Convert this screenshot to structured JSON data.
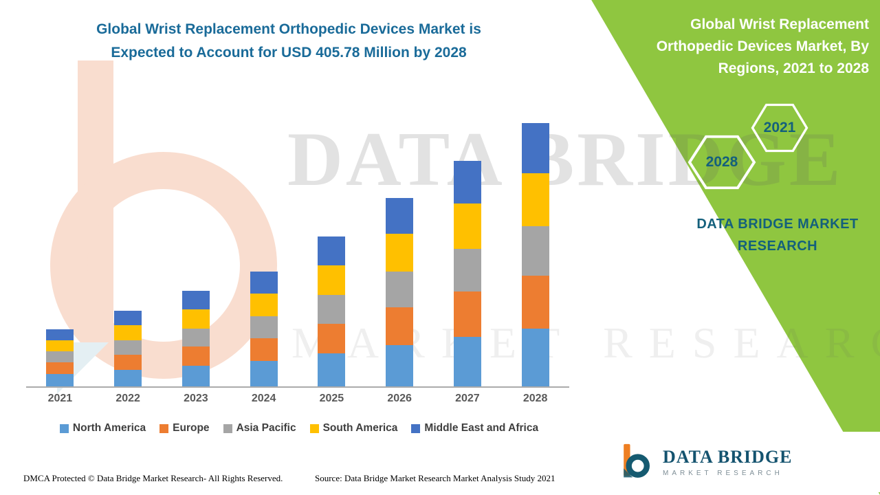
{
  "title": {
    "line1": "Global Wrist Replacement Orthopedic Devices Market is",
    "line2": "Expected to Account for USD 405.78 Million by 2028"
  },
  "side_panel": {
    "heading_lines": [
      "Global Wrist Replacement",
      "Orthopedic Devices Market, By",
      "Regions, 2021 to 2028"
    ],
    "hexagons": [
      "2028",
      "2021"
    ],
    "brand_line1": "DATA BRIDGE MARKET",
    "brand_line2": "RESEARCH"
  },
  "watermark": {
    "line1": "DATA BRIDGE",
    "line2": "MARKET RESEARCH"
  },
  "logo": {
    "title": "DATA BRIDGE",
    "subtitle": "MARKET RESEARCH"
  },
  "footer": {
    "dmca": "DMCA Protected © Data Bridge Market Research- All Rights Reserved.",
    "source": "Source: Data Bridge Market Research Market Analysis Study 2021"
  },
  "colors": {
    "green": "#8FC640",
    "title_teal": "#1A6B99",
    "teal_dark": "#14607C",
    "axis_label": "#595959",
    "legend_text": "#3F3F3F"
  },
  "chart_data": {
    "type": "bar",
    "stacked": true,
    "title": "Global Wrist Replacement Orthopedic Devices Market, By Regions, 2021 to 2028",
    "unit": "USD Million",
    "annotation": "Expected to Account for USD 405.78 Million by 2028",
    "categories": [
      "2021",
      "2022",
      "2023",
      "2024",
      "2025",
      "2026",
      "2027",
      "2028"
    ],
    "series": [
      {
        "name": "North America",
        "color": "#5B9BD5",
        "values": [
          19.4,
          25.7,
          32.3,
          38.9,
          50.8,
          63.8,
          76.6,
          89.3
        ]
      },
      {
        "name": "Europe",
        "color": "#ED7D31",
        "values": [
          17.6,
          23.4,
          29.4,
          35.4,
          46.2,
          58.0,
          69.6,
          81.2
        ]
      },
      {
        "name": "Asia Pacific",
        "color": "#A5A5A5",
        "values": [
          16.7,
          22.2,
          27.9,
          33.6,
          43.9,
          55.1,
          66.1,
          77.1
        ]
      },
      {
        "name": "South America",
        "color": "#FFC000",
        "values": [
          17.6,
          23.4,
          29.4,
          35.4,
          46.2,
          58.0,
          69.6,
          81.1
        ]
      },
      {
        "name": "Middle East and Africa",
        "color": "#4472C4",
        "values": [
          16.7,
          22.3,
          28.0,
          33.7,
          43.9,
          55.1,
          66.1,
          77.08
        ]
      }
    ],
    "totals": [
      88,
      117,
      147,
      177,
      231,
      290,
      348,
      405.78
    ],
    "xlabel": "",
    "ylabel": "",
    "ylim": [
      0,
      420
    ],
    "grid": false,
    "legend_position": "bottom"
  }
}
